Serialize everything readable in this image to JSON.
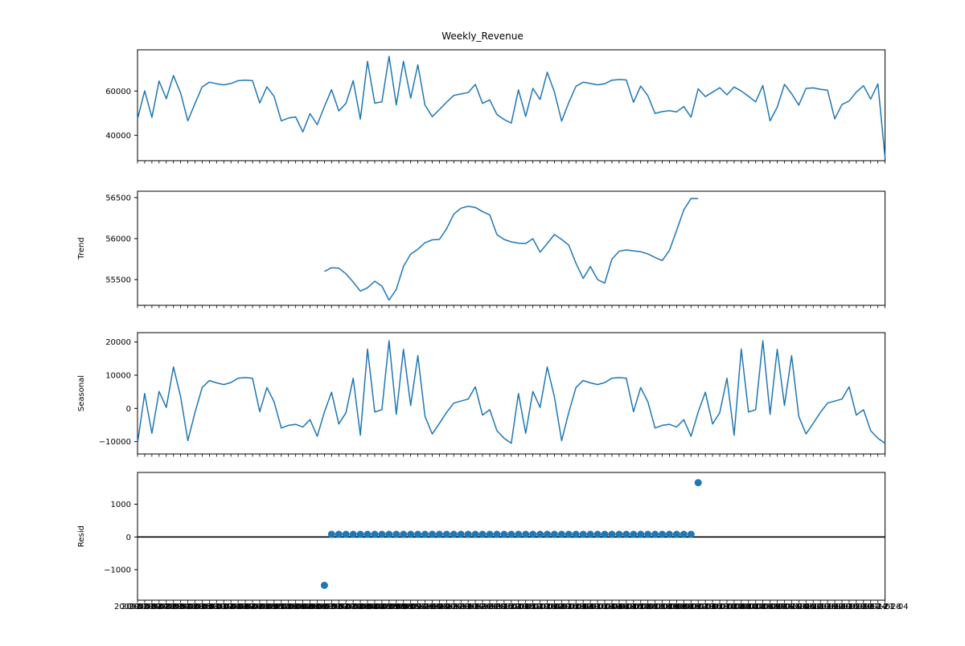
{
  "title": "Weekly_Revenue",
  "chart_data": {
    "type": "line",
    "title": "Weekly_Revenue",
    "line_color": "#1f77b4",
    "zero_line_color": "#000000",
    "n_points": 105,
    "x_dates": [
      "2000-01-07",
      "2000-01-14",
      "2000-01-21",
      "2000-01-28",
      "2000-02-04",
      "2000-02-11",
      "2000-02-18",
      "2000-02-25",
      "2000-03-03",
      "2000-03-10",
      "2000-03-17",
      "2000-03-24",
      "2000-03-31",
      "2000-04-07",
      "2000-04-14",
      "2000-04-21",
      "2000-04-28",
      "2000-05-05",
      "2000-05-12",
      "2000-05-19",
      "2000-05-26",
      "2000-06-02",
      "2000-06-09",
      "2000-06-16",
      "2000-06-23",
      "2000-06-30",
      "2000-07-07",
      "2000-07-14",
      "2000-07-21",
      "2000-07-28",
      "2000-08-04",
      "2000-08-11",
      "2000-08-18",
      "2000-08-25",
      "2000-09-01",
      "2000-09-08",
      "2000-09-15",
      "2000-09-22",
      "2000-09-29",
      "2000-10-06",
      "2000-10-13",
      "2000-10-20",
      "2000-10-27",
      "2000-11-03",
      "2000-11-10",
      "2000-11-17",
      "2000-11-24",
      "2000-12-01",
      "2000-12-08",
      "2000-12-15",
      "2000-12-22",
      "2000-12-29",
      "2001-01-05",
      "2001-01-12",
      "2001-01-19",
      "2001-01-26",
      "2001-02-02",
      "2001-02-09",
      "2001-02-16",
      "2001-02-23",
      "2001-03-02",
      "2001-03-09",
      "2001-03-16",
      "2001-03-23",
      "2001-03-30",
      "2001-04-06",
      "2001-04-13",
      "2001-04-20",
      "2001-04-27",
      "2001-05-04",
      "2001-05-11",
      "2001-05-18",
      "2001-05-25",
      "2001-06-01",
      "2001-06-08",
      "2001-06-15",
      "2001-06-22",
      "2001-06-29",
      "2001-07-06",
      "2001-07-13",
      "2001-07-20",
      "2001-07-27",
      "2001-08-03",
      "2001-08-10",
      "2001-08-17",
      "2001-08-24",
      "2001-08-31",
      "2001-09-07",
      "2001-09-14",
      "2001-09-21",
      "2001-09-28",
      "2001-10-05",
      "2001-10-12",
      "2001-10-19",
      "2001-10-26",
      "2001-11-02",
      "2001-11-09",
      "2001-11-16",
      "2001-11-23",
      "2001-11-30",
      "2001-12-07",
      "2001-12-14",
      "2001-12-21",
      "2001-12-28",
      "2002-01-04"
    ],
    "observed": [
      47300,
      60100,
      48100,
      64500,
      56500,
      67000,
      59100,
      46500,
      54400,
      61900,
      64000,
      63300,
      62800,
      63400,
      64700,
      64900,
      64700,
      54600,
      61900,
      57600,
      46500,
      47800,
      48300,
      41500,
      49800,
      44800,
      53000,
      60600,
      51000,
      54400,
      64700,
      47300,
      73400,
      54500,
      55100,
      75700,
      53700,
      73500,
      56800,
      71900,
      53600,
      48400,
      51600,
      55000,
      58000,
      58700,
      59300,
      63000,
      54400,
      56000,
      49400,
      47100,
      45500,
      60500,
      48500,
      61200,
      56200,
      68500,
      59600,
      46400,
      54800,
      62100,
      64000,
      63400,
      62800,
      63300,
      64900,
      65200,
      65000,
      54900,
      62200,
      57900,
      49900,
      50700,
      51100,
      50600,
      53000,
      48200,
      61000,
      57500,
      59500,
      61500,
      58300,
      61800,
      60000,
      57600,
      55100,
      62500,
      46500,
      52700,
      63000,
      58800,
      53600,
      61200,
      61400,
      60800,
      60350,
      47400,
      53900,
      55500,
      59500,
      62400,
      56350,
      63260,
      29700
    ],
    "trend": {
      "start_index": 26,
      "values": [
        55600,
        55645,
        55640,
        55570,
        55470,
        55360,
        55400,
        55480,
        55420,
        55250,
        55380,
        55660,
        55810,
        55870,
        55950,
        55985,
        55990,
        56120,
        56300,
        56370,
        56395,
        56380,
        56330,
        56290,
        56050,
        55990,
        55960,
        55945,
        55940,
        56000,
        55835,
        55940,
        56050,
        55990,
        55920,
        55700,
        55513,
        55660,
        55500,
        55457,
        55750,
        55846,
        55862,
        55850,
        55840,
        55813,
        55770,
        55732,
        55856,
        56100,
        56350,
        56490,
        56488
      ]
    },
    "seasonal_cycle": [
      -10500,
      4500,
      -7500,
      5100,
      300,
      12500,
      3500,
      -9700,
      -1200,
      6300,
      8400,
      7700,
      7200,
      7800,
      9100,
      9300,
      9100,
      -1000,
      6300,
      2000,
      -5900,
      -5100,
      -4800,
      -5600,
      -3400,
      -8400,
      -1100,
      4900,
      -4700,
      -1300,
      9100,
      -8100,
      17900,
      -1100,
      -400,
      20400,
      -1800,
      17800,
      900,
      15900,
      -2400,
      -7700,
      -4500,
      -1200,
      1600,
      2200,
      2800,
      6500,
      -2000,
      -400,
      -6700,
      -9000
    ],
    "resid": {
      "start_index": 26,
      "values": [
        -1480,
        80,
        80,
        80,
        80,
        80,
        80,
        80,
        80,
        80,
        80,
        80,
        80,
        80,
        80,
        80,
        80,
        80,
        80,
        80,
        80,
        80,
        80,
        80,
        80,
        80,
        80,
        80,
        80,
        80,
        80,
        80,
        80,
        80,
        80,
        80,
        80,
        80,
        80,
        80,
        80,
        80,
        80,
        80,
        80,
        80,
        80,
        80,
        80,
        80,
        80,
        80,
        1660
      ]
    },
    "panels": [
      {
        "name": "observed",
        "ylabel": "",
        "yticks": [
          40000,
          60000
        ],
        "ylim": [
          28480,
          78650
        ]
      },
      {
        "name": "trend",
        "ylabel": "Trend",
        "yticks": [
          55500,
          56000,
          56500
        ],
        "ylim": [
          55186,
          56578
        ]
      },
      {
        "name": "seasonal",
        "ylabel": "Seasonal",
        "yticks": [
          -10000,
          0,
          10000,
          20000
        ],
        "ylim": [
          -13730,
          22830
        ]
      },
      {
        "name": "resid",
        "ylabel": "Resid",
        "yticks": [
          -1000,
          0,
          1000
        ],
        "ylim": [
          -1934,
          1973
        ]
      }
    ]
  }
}
